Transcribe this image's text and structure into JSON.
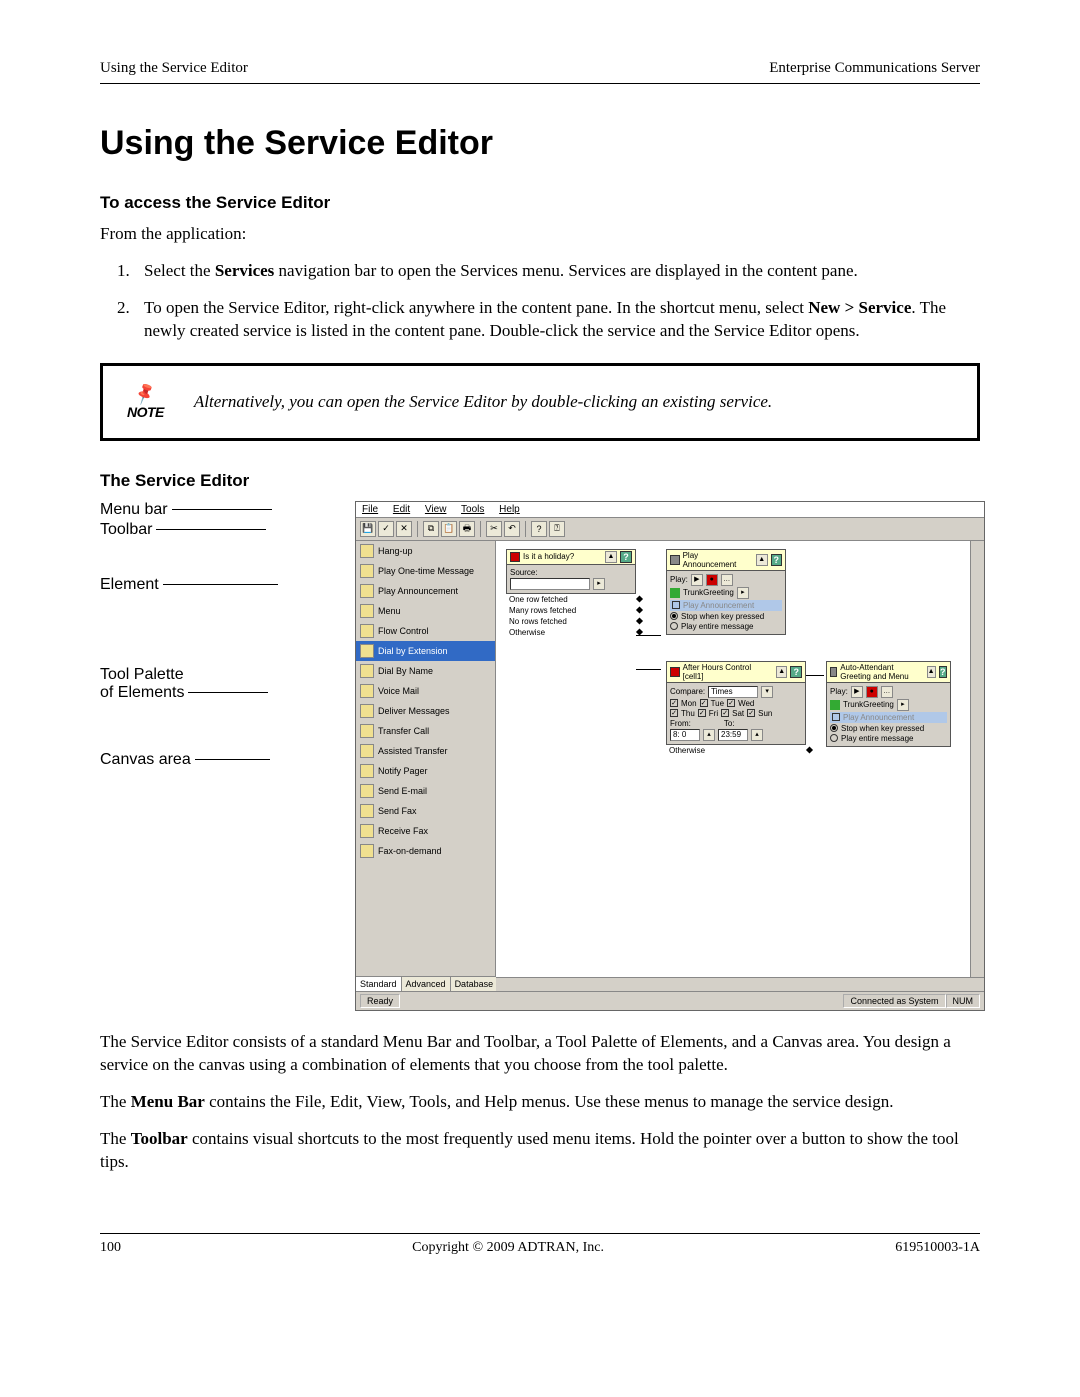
{
  "header": {
    "left": "Using the Service Editor",
    "right": "Enterprise Communications Server"
  },
  "title": "Using the Service Editor",
  "sect1": {
    "heading": "To access the Service Editor",
    "intro": "From the application:",
    "step1_a": "Select the ",
    "step1_b": "Services",
    "step1_c": " navigation bar to open the Services menu. Services are displayed in the content pane.",
    "step2_a": "To open the Service Editor, right-click anywhere in the content pane. In the shortcut menu, select ",
    "step2_b": "New > Service",
    "step2_c": ". The newly created service is listed in the content pane. Double-click the service and the Service Editor opens."
  },
  "note": {
    "label": "NOTE",
    "text": "Alternatively, you can open the Service Editor by double-clicking an existing service."
  },
  "sect2": {
    "heading": "The Service Editor"
  },
  "callouts": {
    "menubar": "Menu bar",
    "toolbar": "Toolbar",
    "element": "Element",
    "palette_l1": "Tool Palette",
    "palette_l2": "of Elements",
    "canvas": "Canvas area"
  },
  "app": {
    "menus": {
      "file": "File",
      "edit": "Edit",
      "view": "View",
      "tools": "Tools",
      "help": "Help"
    },
    "palette_items": [
      "Hang-up",
      "Play One-time Message",
      "Play Announcement",
      "Menu",
      "Flow Control",
      "Dial by Extension",
      "Dial By Name",
      "Voice Mail",
      "Deliver Messages",
      "Transfer Call",
      "Assisted Transfer",
      "Notify Pager",
      "Send E-mail",
      "Send Fax",
      "Receive Fax",
      "Fax-on-demand"
    ],
    "palette_selected": "Dial by Extension",
    "palette_tabs": {
      "standard": "Standard",
      "advanced": "Advanced",
      "database": "Database"
    },
    "node_holiday": {
      "title": "Is it a holiday?",
      "source": "Source:",
      "out1": "One row fetched",
      "out2": "Many rows fetched",
      "out3": "No rows fetched",
      "out4": "Otherwise"
    },
    "node_playann": {
      "title": "Play Announcement",
      "play": "Play:",
      "greeting": "TrunkGreeting",
      "announce": "Play Announcement",
      "opt1": "Stop when key pressed",
      "opt2": "Play entire message"
    },
    "node_afterhours": {
      "title": "After Hours Control [cell1]",
      "compare": "Compare:",
      "compare_val": "Times",
      "days": {
        "mon": "Mon",
        "tue": "Tue",
        "wed": "Wed",
        "thu": "Thu",
        "fri": "Fri",
        "sat": "Sat",
        "sun": "Sun"
      },
      "from": "From:",
      "to": "To:",
      "from_val": "8: 0",
      "to_val": "23:59",
      "otherwise": "Otherwise"
    },
    "node_autoatt": {
      "title": "Auto-Attendant Greeting and Menu",
      "play": "Play:",
      "greeting": "TrunkGreeting",
      "announce": "Play Announcement",
      "opt1": "Stop when key pressed",
      "opt2": "Play entire message"
    },
    "status": {
      "ready": "Ready",
      "conn": "Connected as System",
      "num": "NUM"
    }
  },
  "para1": "The Service Editor consists of a standard Menu Bar and Toolbar, a Tool Palette of Elements, and a Canvas area. You design a service on the canvas using a combination of elements that you choose from the tool palette.",
  "para2_a": "The ",
  "para2_b": "Menu Bar",
  "para2_c": " contains the File, Edit, View, Tools, and Help menus. Use these menus to manage the service design.",
  "para3_a": "The ",
  "para3_b": "Toolbar",
  "para3_c": " contains visual shortcuts to the most frequently used menu items. Hold the pointer over a button to show the tool tips.",
  "footer": {
    "page": "100",
    "copyright": "Copyright © 2009 ADTRAN, Inc.",
    "docnum": "619510003-1A"
  }
}
